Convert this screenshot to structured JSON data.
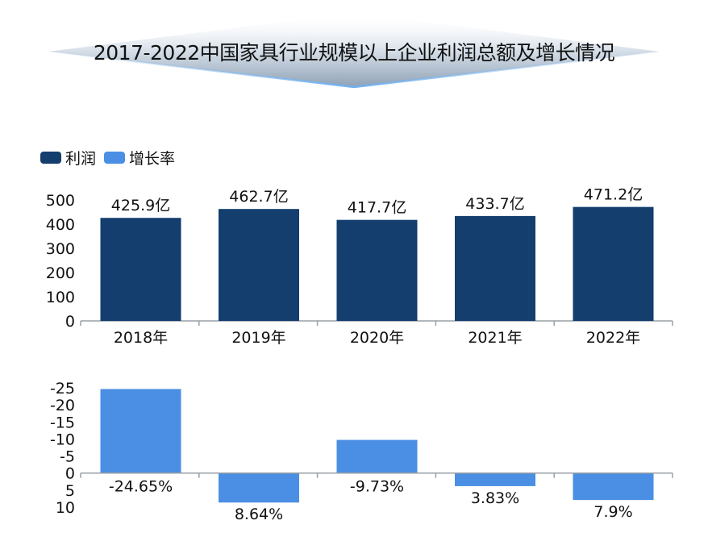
{
  "title": "2017-2022中国家具行业规模以上企业利润总额及增长情况",
  "legend": [
    {
      "label": "利润",
      "color": "#133e6e"
    },
    {
      "label": "增长率",
      "color": "#4a8fe3"
    }
  ],
  "chart_data": [
    {
      "type": "bar",
      "categories": [
        "2018年",
        "2019年",
        "2020年",
        "2021年",
        "2022年"
      ],
      "series": [
        {
          "name": "利润",
          "values": [
            425.9,
            462.7,
            417.7,
            433.7,
            471.2
          ],
          "color": "#133e6e"
        }
      ],
      "data_labels": [
        "425.9亿",
        "462.7亿",
        "417.7亿",
        "433.7亿",
        "471.2亿"
      ],
      "yticks": [
        "500",
        "400",
        "300",
        "200",
        "100",
        "0"
      ],
      "ylim": [
        0,
        500
      ],
      "grid": false
    },
    {
      "type": "bar",
      "categories": [
        "2018年",
        "2019年",
        "2020年",
        "2021年",
        "2022年"
      ],
      "series": [
        {
          "name": "增长率",
          "values": [
            -24.65,
            8.64,
            -9.73,
            3.83,
            7.9
          ],
          "color": "#4a8fe3"
        }
      ],
      "data_labels": [
        "-24.65%",
        "8.64%",
        "-9.73%",
        "3.83%",
        "7.9%"
      ],
      "yticks": [
        "-25",
        "-20",
        "-15",
        "-10",
        "-5",
        "0",
        "5",
        "10"
      ],
      "ylim": [
        -25,
        10
      ],
      "y_axis_inverted": true,
      "grid": false
    }
  ]
}
